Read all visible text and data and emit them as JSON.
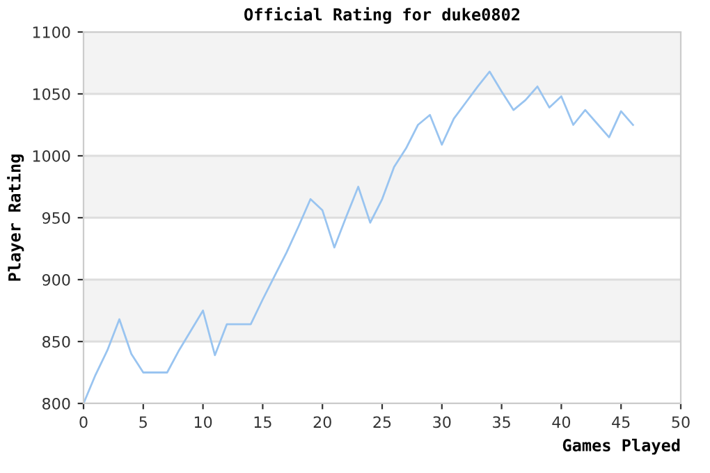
{
  "chart_data": {
    "type": "line",
    "title": "Official Rating for duke0802",
    "xlabel": "Games Played",
    "ylabel": "Player Rating",
    "x": [
      0,
      1,
      2,
      3,
      4,
      5,
      6,
      7,
      8,
      9,
      10,
      11,
      12,
      13,
      14,
      15,
      16,
      17,
      18,
      19,
      20,
      21,
      22,
      23,
      24,
      25,
      26,
      27,
      28,
      29,
      30,
      31,
      32,
      33,
      34,
      35,
      36,
      37,
      38,
      39,
      40,
      41,
      42,
      43,
      44,
      45,
      46
    ],
    "series": [
      {
        "color": "#99c4f0",
        "values": [
          800,
          823,
          843,
          868,
          840,
          825,
          825,
          825,
          843,
          859,
          875,
          839,
          864,
          864,
          864,
          884,
          903,
          922,
          943,
          965,
          956,
          926,
          951,
          975,
          946,
          965,
          991,
          1006,
          1025,
          1033,
          1009,
          1030,
          1043,
          1056,
          1068,
          1052,
          1037,
          1045,
          1056,
          1039,
          1048,
          1025,
          1037,
          1026,
          1015,
          1036,
          1025
        ]
      }
    ],
    "xlim": [
      0,
      50
    ],
    "xticks": [
      0,
      5,
      10,
      15,
      20,
      25,
      30,
      35,
      40,
      45,
      50
    ],
    "ylim": [
      800,
      1100
    ],
    "yticks": [
      800,
      850,
      900,
      950,
      1000,
      1050,
      1100
    ],
    "grid": "y",
    "legend": false,
    "marker": "none",
    "line_style": "solid"
  }
}
